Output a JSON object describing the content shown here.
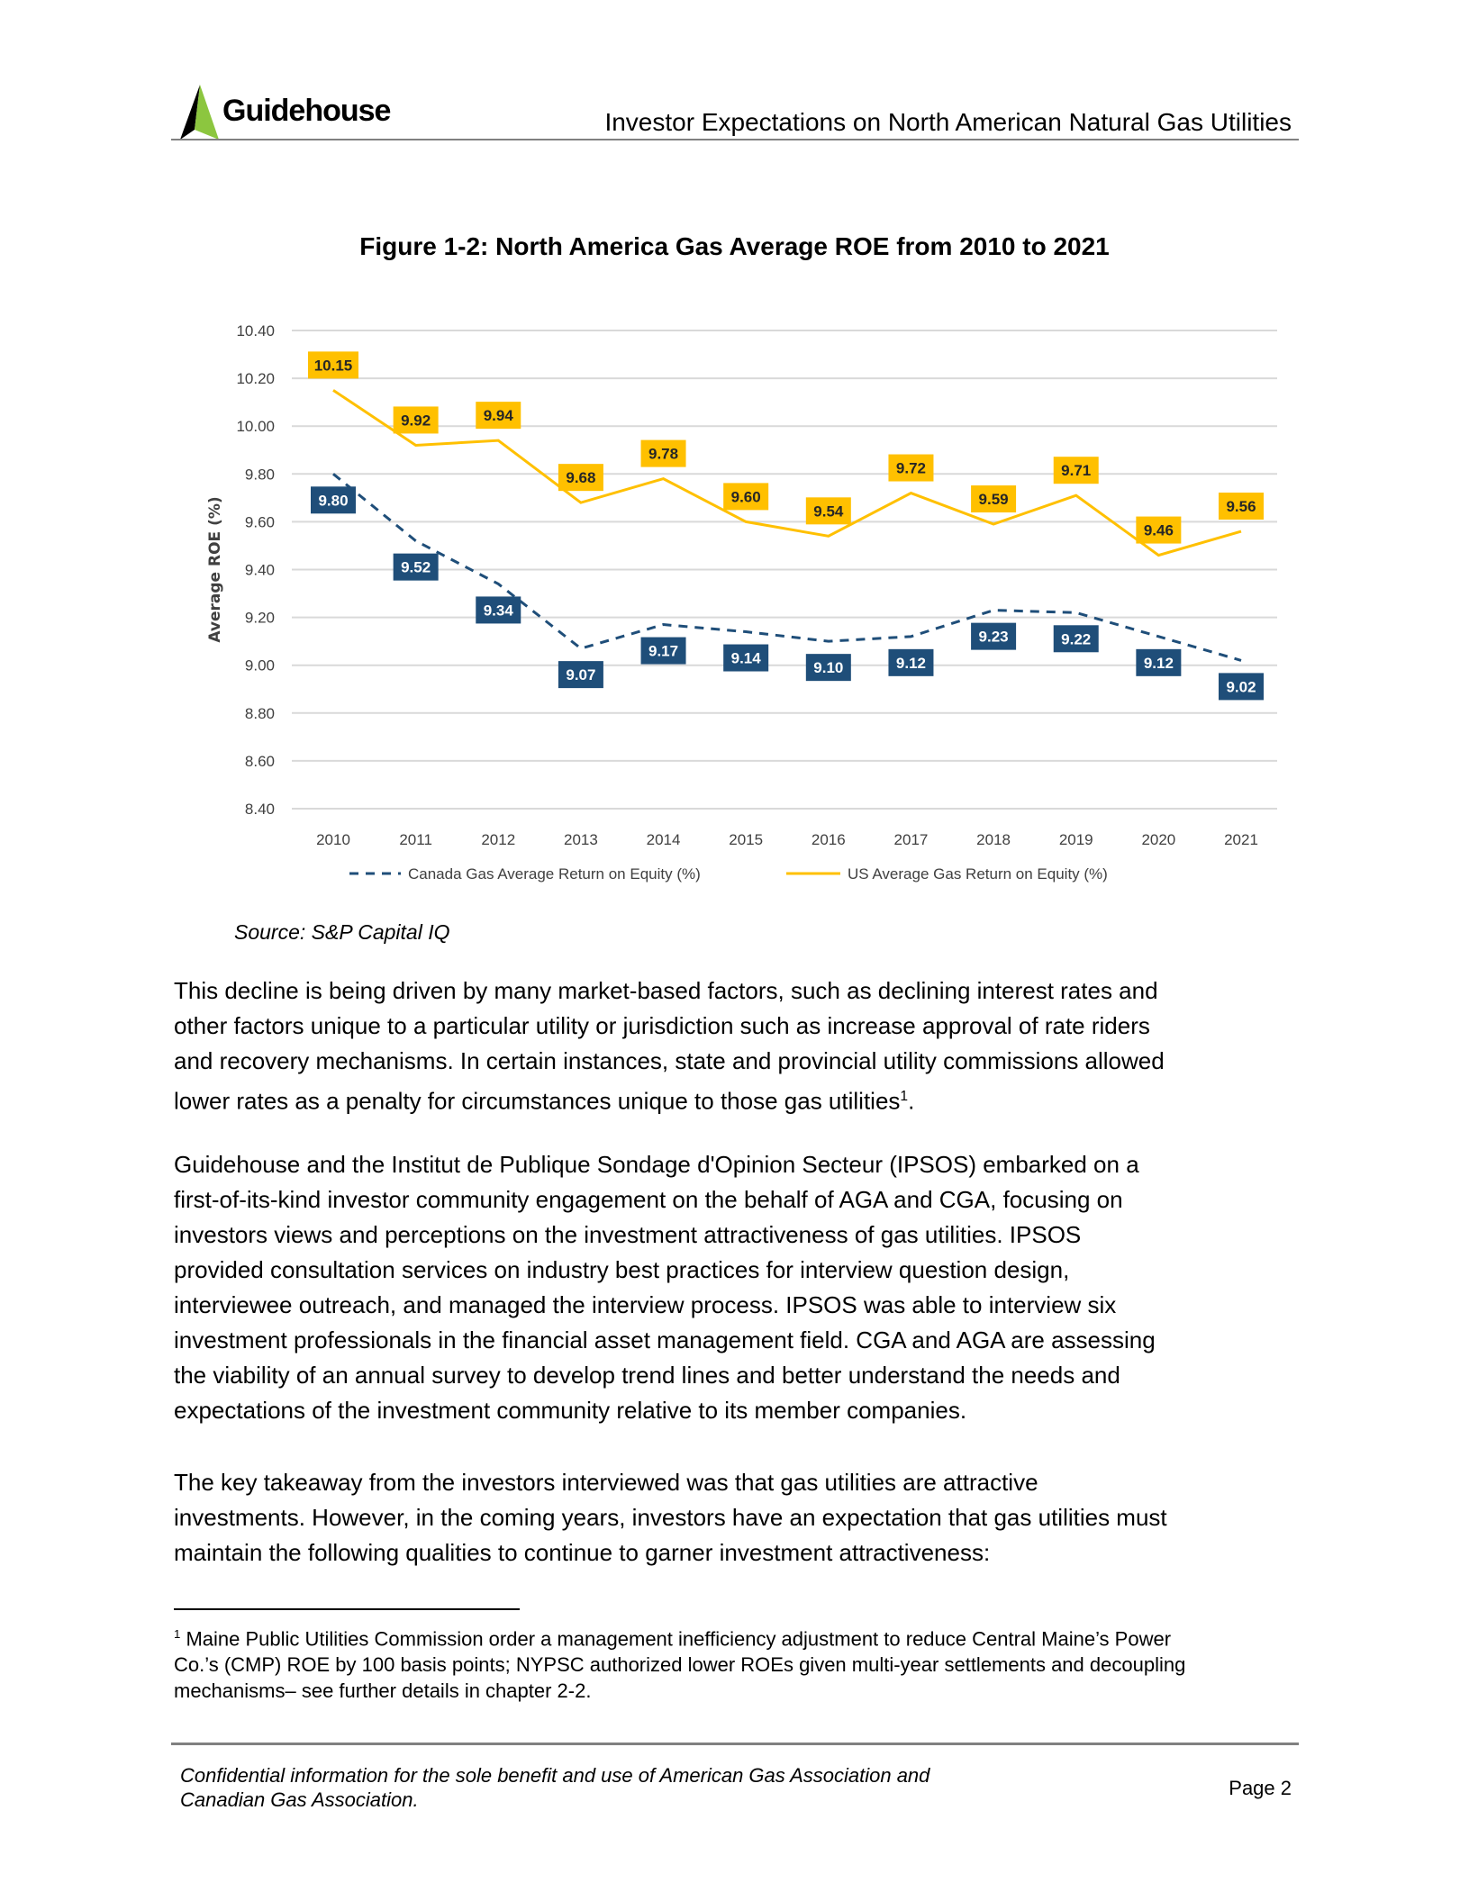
{
  "header": {
    "logo_text": "Guidehouse",
    "title": "Investor Expectations on North American Natural Gas Utilities"
  },
  "figure": {
    "title": "Figure 1-2: North America Gas Average ROE from 2010 to 2021",
    "source": "Source: S&P Capital IQ"
  },
  "chart_data": {
    "type": "line",
    "title": "Figure 1-2: North America Gas Average ROE from 2010 to 2021",
    "xlabel": "",
    "ylabel": "Average ROE (%)",
    "ylim": [
      8.4,
      10.4
    ],
    "yticks": [
      "10.40",
      "10.20",
      "10.00",
      "9.80",
      "9.60",
      "9.40",
      "9.20",
      "9.00",
      "8.80",
      "8.60",
      "8.40"
    ],
    "categories": [
      "2010",
      "2011",
      "2012",
      "2013",
      "2014",
      "2015",
      "2016",
      "2017",
      "2018",
      "2019",
      "2020",
      "2021"
    ],
    "grid": true,
    "legend": "bottom",
    "series": [
      {
        "name": "Canada Gas Average Return on Equity (%)",
        "style": "dashed",
        "color": "#1f4e79",
        "values": [
          9.8,
          9.52,
          9.34,
          9.07,
          9.17,
          9.14,
          9.1,
          9.12,
          9.23,
          9.22,
          9.12,
          9.02
        ],
        "labels": [
          "9.80",
          "9.52",
          "9.34",
          "9.07",
          "9.17",
          "9.14",
          "9.10",
          "9.12",
          "9.23",
          "9.22",
          "9.12",
          "9.02"
        ]
      },
      {
        "name": "US Average Gas Return on Equity (%)",
        "style": "solid",
        "color": "#ffc000",
        "values": [
          10.15,
          9.92,
          9.94,
          9.68,
          9.78,
          9.6,
          9.54,
          9.72,
          9.59,
          9.71,
          9.46,
          9.56
        ],
        "labels": [
          "10.15",
          "9.92",
          "9.94",
          "9.68",
          "9.78",
          "9.60",
          "9.54",
          "9.72",
          "9.59",
          "9.71",
          "9.46",
          "9.56"
        ]
      }
    ]
  },
  "body": {
    "p1": [
      "This decline is being driven by many market-based factors, such as declining interest rates and",
      "other factors unique to a particular utility or jurisdiction such as increase approval of rate riders",
      "and recovery mechanisms. In certain instances, state and provincial utility commissions allowed",
      "lower rates as a penalty for circumstances unique to those gas utilities"
    ],
    "p1_ref": "1",
    "p1_end": ".",
    "p2": [
      "Guidehouse and the Institut de Publique Sondage d'Opinion Secteur (IPSOS) embarked on a",
      "first-of-its-kind investor community engagement on the behalf of AGA and CGA, focusing on",
      "investors views and perceptions on the investment attractiveness of gas utilities. IPSOS",
      "provided consultation services on industry best practices for interview question design,",
      "interviewee outreach, and managed the interview process. IPSOS was able to interview six",
      "investment professionals in the financial asset management field. CGA and AGA are assessing",
      "the viability of an annual survey to develop trend lines and better understand the needs and",
      "expectations of the investment community relative to its member companies."
    ],
    "p3": [
      "The key takeaway from the investors interviewed was that gas utilities are attractive",
      "investments. However, in the coming years, investors have an expectation that gas utilities must",
      "maintain the following qualities to continue to garner investment attractiveness:"
    ]
  },
  "footnote": {
    "marker": "1",
    "lines": [
      " Maine Public Utilities Commission order a management inefficiency adjustment to reduce Central Maine’s Power",
      "Co.’s (CMP) ROE by 100 basis points; NYPSC authorized lower ROEs given multi-year settlements and decoupling",
      "mechanisms– see further details in chapter 2-2."
    ]
  },
  "footer": {
    "confidential": [
      "Confidential information for the sole benefit and use of American Gas Association and",
      "Canadian Gas Association."
    ],
    "page": "Page 2"
  }
}
